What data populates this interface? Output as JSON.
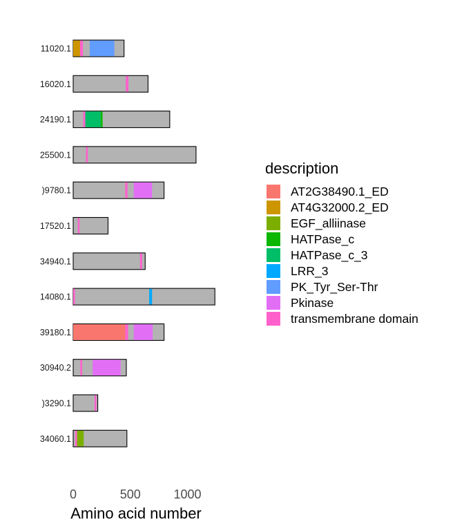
{
  "chart_data": {
    "type": "bar",
    "xlabel": "Amino acid number",
    "xlim": [
      0,
      1250
    ],
    "xticks": [
      0,
      500,
      1000
    ],
    "xtick_labels": [
      "0",
      "500",
      "1000"
    ],
    "legend_title": "description",
    "legend_position": "right",
    "grid": false,
    "categories": [
      {
        "name": "AT2G38490.1_ED",
        "color": "#F8766D"
      },
      {
        "name": "AT4G32000.2_ED",
        "color": "#CD9600"
      },
      {
        "name": "EGF_alliinase",
        "color": "#7CAE00"
      },
      {
        "name": "HATPase_c",
        "color": "#0CB702"
      },
      {
        "name": "HATPase_c_3",
        "color": "#00BE67"
      },
      {
        "name": "LRR_3",
        "color": "#00A9FF"
      },
      {
        "name": "PK_Tyr_Ser-Thr",
        "color": "#619CFF"
      },
      {
        "name": "Pkinase",
        "color": "#E36EF6"
      },
      {
        "name": "transmembrane domain",
        "color": "#FF61CC"
      }
    ],
    "proteins": [
      {
        "label": "11020.1",
        "length": 445,
        "domains": [
          {
            "type": "AT4G32000.2_ED",
            "start": 0,
            "end": 60
          },
          {
            "type": "transmembrane domain",
            "start": 60,
            "end": 85
          },
          {
            "type": "PK_Tyr_Ser-Thr",
            "start": 145,
            "end": 360
          }
        ]
      },
      {
        "label": "16020.1",
        "length": 655,
        "domains": [
          {
            "type": "transmembrane domain",
            "start": 460,
            "end": 483
          }
        ]
      },
      {
        "label": "24190.1",
        "length": 845,
        "domains": [
          {
            "type": "transmembrane domain",
            "start": 88,
            "end": 106
          },
          {
            "type": "HATPase_c_3",
            "start": 106,
            "end": 240
          },
          {
            "type": "HATPase_c",
            "start": 240,
            "end": 257
          }
        ]
      },
      {
        "label": "25500.1",
        "length": 1075,
        "domains": [
          {
            "type": "transmembrane domain",
            "start": 112,
            "end": 128
          }
        ]
      },
      {
        "label": ")9780.1",
        "length": 795,
        "domains": [
          {
            "type": "transmembrane domain",
            "start": 455,
            "end": 475
          },
          {
            "type": "Pkinase",
            "start": 530,
            "end": 690
          }
        ]
      },
      {
        "label": "17520.1",
        "length": 305,
        "domains": [
          {
            "type": "transmembrane domain",
            "start": 40,
            "end": 55
          }
        ]
      },
      {
        "label": "34940.1",
        "length": 630,
        "domains": [
          {
            "type": "transmembrane domain",
            "start": 585,
            "end": 603
          }
        ]
      },
      {
        "label": "14080.1",
        "length": 1240,
        "domains": [
          {
            "type": "transmembrane domain",
            "start": 0,
            "end": 12
          },
          {
            "type": "LRR_3",
            "start": 665,
            "end": 690
          }
        ]
      },
      {
        "label": "39180.1",
        "length": 795,
        "domains": [
          {
            "type": "AT2G38490.1_ED",
            "start": 0,
            "end": 455
          },
          {
            "type": "transmembrane domain",
            "start": 455,
            "end": 480
          },
          {
            "type": "Pkinase",
            "start": 530,
            "end": 695
          }
        ]
      },
      {
        "label": "30940.2",
        "length": 465,
        "domains": [
          {
            "type": "transmembrane domain",
            "start": 62,
            "end": 78
          },
          {
            "type": "Pkinase",
            "start": 170,
            "end": 415
          }
        ]
      },
      {
        "label": ")3290.1",
        "length": 215,
        "domains": [
          {
            "type": "transmembrane domain",
            "start": 187,
            "end": 203
          }
        ]
      },
      {
        "label": "34060.1",
        "length": 470,
        "domains": [
          {
            "type": "transmembrane domain",
            "start": 18,
            "end": 34
          },
          {
            "type": "EGF_alliinase",
            "start": 34,
            "end": 92
          }
        ]
      }
    ]
  }
}
